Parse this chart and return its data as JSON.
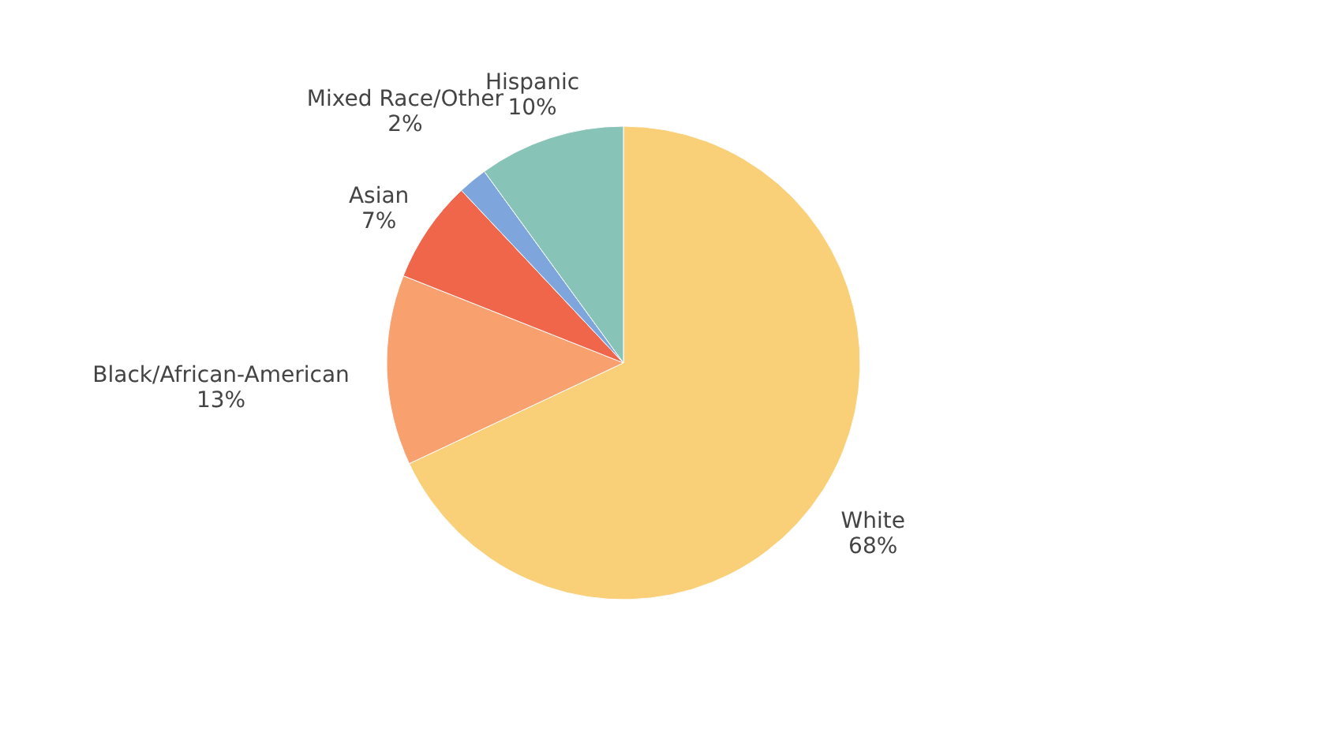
{
  "chart_data": {
    "type": "pie",
    "categories": [
      "White",
      "Black/African-American",
      "Asian",
      "Mixed Race/Other",
      "Hispanic"
    ],
    "values": [
      68,
      13,
      7,
      2,
      10
    ],
    "colors": [
      "#f9cf78",
      "#f8a06e",
      "#f0664a",
      "#7ea6dc",
      "#88c3b7"
    ],
    "value_labels": [
      "68%",
      "13%",
      "7%",
      "2%",
      "10%"
    ],
    "legend": false
  }
}
